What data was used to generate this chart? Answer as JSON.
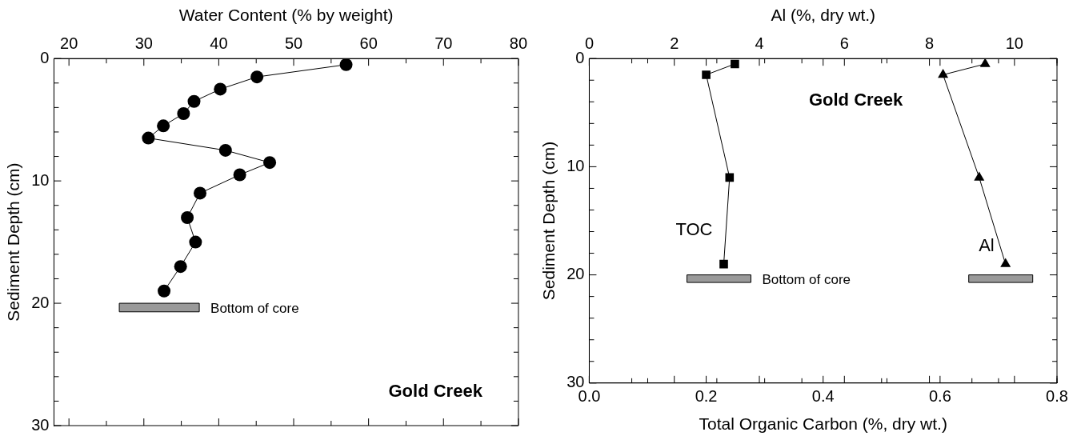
{
  "chart_data": [
    {
      "type": "line",
      "xlabel": "Water Content (% by weight)",
      "ylabel": "Sediment Depth (cm)",
      "xlim": [
        18,
        80
      ],
      "xticks": [
        20,
        {
          "value": 25,
          "label": null
        },
        30,
        {
          "value": 35,
          "label": null
        },
        40,
        {
          "value": 45,
          "label": null
        },
        50,
        {
          "value": 55,
          "label": null
        },
        60,
        {
          "value": 65,
          "label": null
        },
        70,
        {
          "value": 75,
          "label": null
        },
        80
      ],
      "ylim": [
        30,
        0
      ],
      "yticks": [
        0,
        {
          "value": 2,
          "label": null
        },
        {
          "value": 4,
          "label": null
        },
        {
          "value": 6,
          "label": null
        },
        {
          "value": 8,
          "label": null
        },
        10,
        {
          "value": 12,
          "label": null
        },
        {
          "value": 14,
          "label": null
        },
        {
          "value": 16,
          "label": null
        },
        {
          "value": 18,
          "label": null
        },
        20,
        {
          "value": 22,
          "label": null
        },
        {
          "value": 24,
          "label": null
        },
        {
          "value": 26,
          "label": null
        },
        {
          "value": 28,
          "label": null
        },
        30
      ],
      "series": [
        {
          "color": "#000000",
          "marker": "circle",
          "x": [
            57.0,
            45.1,
            40.2,
            36.7,
            35.3,
            32.6,
            30.6,
            40.9,
            46.8,
            42.8,
            37.5,
            35.8,
            36.9,
            34.9,
            32.7
          ],
          "values": [
            0.5,
            1.5,
            2.5,
            3.5,
            4.5,
            5.5,
            6.5,
            7.5,
            8.5,
            9.5,
            11,
            13,
            15,
            17,
            19
          ]
        }
      ],
      "bands": [
        {
          "axis": "y",
          "from": 20,
          "to": 20.7,
          "label": "Bottom of core"
        }
      ],
      "annotations": [
        "Gold Creek"
      ],
      "grid": false,
      "legend": false,
      "line_style": "solid"
    },
    {
      "type": "line",
      "xlabel": "Total Organic Carbon (%, dry wt.)",
      "x2label": "Al (%, dry wt.)",
      "ylabel": "Sediment Depth (cm)",
      "xlim": [
        0,
        0.8
      ],
      "xticks": [
        {
          "value": 0,
          "label": "0.0"
        },
        {
          "value": 0.1,
          "label": null
        },
        {
          "value": 0.2,
          "label": "0.2"
        },
        {
          "value": 0.3,
          "label": null
        },
        {
          "value": 0.4,
          "label": "0.4"
        },
        {
          "value": 0.5,
          "label": null
        },
        {
          "value": 0.6,
          "label": "0.6"
        },
        {
          "value": 0.7,
          "label": null
        },
        {
          "value": 0.8,
          "label": "0.8"
        }
      ],
      "x2lim": [
        0,
        11
      ],
      "x2ticks": [
        0,
        {
          "value": 1,
          "label": null
        },
        2,
        {
          "value": 3,
          "label": null
        },
        4,
        {
          "value": 5,
          "label": null
        },
        6,
        {
          "value": 7,
          "label": null
        },
        8,
        {
          "value": 9,
          "label": null
        },
        10,
        {
          "value": 11,
          "label": null
        }
      ],
      "ylim": [
        30,
        0
      ],
      "yticks": [
        0,
        {
          "value": 2,
          "label": null
        },
        {
          "value": 4,
          "label": null
        },
        {
          "value": 6,
          "label": null
        },
        {
          "value": 8,
          "label": null
        },
        10,
        {
          "value": 12,
          "label": null
        },
        {
          "value": 14,
          "label": null
        },
        {
          "value": 16,
          "label": null
        },
        {
          "value": 18,
          "label": null
        },
        20,
        {
          "value": 22,
          "label": null
        },
        {
          "value": 24,
          "label": null
        },
        {
          "value": 26,
          "label": null
        },
        {
          "value": 28,
          "label": null
        },
        30
      ],
      "series": [
        {
          "name": "TOC",
          "color": "#000000",
          "marker": "square",
          "x": [
            0.249,
            0.2,
            0.24,
            0.23
          ],
          "values": [
            0.5,
            1.5,
            11,
            19
          ]
        },
        {
          "name": "Al",
          "color": "#000000",
          "axis": "x2",
          "marker": "triangle",
          "x": [
            9.31,
            8.32,
            9.17,
            9.79
          ],
          "values": [
            0.5,
            1.5,
            11,
            19
          ]
        }
      ],
      "bands": [
        {
          "axis": "y",
          "from": 20,
          "to": 20.7,
          "label": "Bottom of core"
        },
        {
          "axis": "y",
          "from": 20,
          "to": 20.7
        }
      ],
      "annotations": [
        "Gold Creek"
      ],
      "grid": false,
      "legend": false,
      "line_style": "solid"
    }
  ]
}
